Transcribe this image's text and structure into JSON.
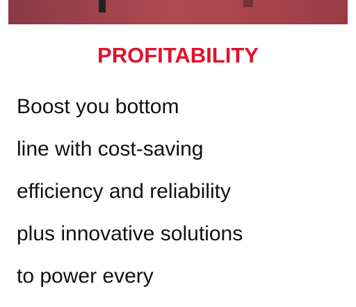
{
  "heading": "PROFITABILITY",
  "lines": [
    "Boost you bottom",
    "line with cost-saving",
    "efficiency and reliability",
    "plus innovative solutions",
    "to power every"
  ]
}
